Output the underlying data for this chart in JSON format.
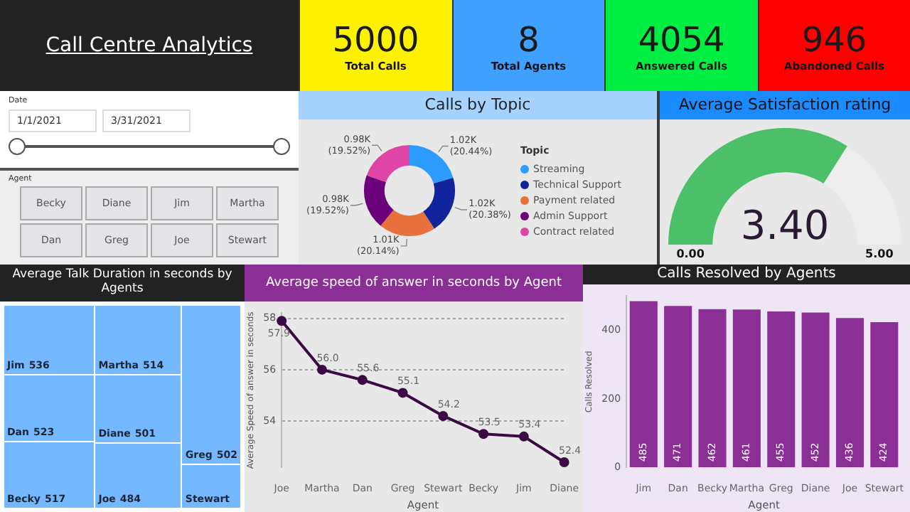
{
  "chart_data": [
    {
      "type": "other",
      "title": "Call Centre Analytics",
      "categories": [
        "Total Calls",
        "Total Agents",
        "Answered Calls",
        "Abandoned Calls"
      ],
      "value_labels": [
        "5000",
        "8",
        "4054",
        "946"
      ],
      "colors": [
        "#fff200",
        "#3fa0ff",
        "#00ee44",
        "#ff0000"
      ]
    },
    {
      "type": "other",
      "annotations": [
        "Date",
        "1/1/2021",
        "3/31/2021",
        "Agent",
        "Becky",
        "Diane",
        "Jim",
        "Martha",
        "Dan",
        "Greg",
        "Joe",
        "Stewart"
      ]
    },
    {
      "type": "donut",
      "title": "Calls by Topic",
      "legend_title": "Topic",
      "legend": "right",
      "categories": [
        "Streaming",
        "Technical Support",
        "Payment related",
        "Admin Support",
        "Contract related"
      ],
      "values": [
        20.44,
        20.38,
        20.14,
        19.52,
        19.52
      ],
      "value_labels": [
        "1.02K (20.44%)",
        "1.02K (20.38%)",
        "1.01K (20.14%)",
        "0.98K (19.52%)",
        "0.98K (19.52%)"
      ],
      "colors": [
        "#2d9cff",
        "#12239e",
        "#e8703a",
        "#6b007b",
        "#e044a7"
      ]
    },
    {
      "type": "donut",
      "title": "Average Satisfaction rating",
      "categories": [
        null,
        null
      ],
      "values": [
        3.4,
        1.6
      ],
      "value_labels": [
        "3.40",
        null
      ],
      "colors": [
        "#4cc068",
        "#eeeeee"
      ],
      "annotations": [
        "0.00",
        "5.00"
      ]
    },
    {
      "type": "other",
      "title": "Average Talk Duration in seconds by Agents",
      "categories": [
        "Jim",
        "Dan",
        "Becky",
        "Martha",
        "Diane",
        "Joe",
        "Greg",
        "Stewart"
      ],
      "values": [
        536,
        523,
        517,
        514,
        501,
        484,
        502,
        null
      ],
      "value_labels": [
        "536",
        "523",
        "517",
        "514",
        "501",
        "484",
        "502",
        null
      ],
      "color": "#74b9ff"
    },
    {
      "type": "line",
      "title": "Average speed of answer in seconds by Agent",
      "xlabel": "Agent",
      "ylabel": "Average Speed of answer in seconds",
      "categories": [
        "Joe",
        "Martha",
        "Dan",
        "Greg",
        "Stewart",
        "Becky",
        "Jim",
        "Diane"
      ],
      "values": [
        57.9,
        56.0,
        55.6,
        55.1,
        54.2,
        53.5,
        53.4,
        52.4
      ],
      "value_labels": [
        "57.9",
        "56.0",
        "55.6",
        "55.1",
        "54.2",
        "53.5",
        "53.4",
        "52.4"
      ],
      "color": "#3b0a45",
      "ylim": [
        52.2,
        58.2
      ],
      "yticks": [
        54,
        56,
        58
      ],
      "grid": "y",
      "marker": "circle",
      "line_style": "solid"
    },
    {
      "type": "bar",
      "title": "Calls Resolved by Agents",
      "xlabel": "Agent",
      "ylabel": "Calls Resolved",
      "categories": [
        "Jim",
        "Dan",
        "Becky",
        "Martha",
        "Greg",
        "Diane",
        "Joe",
        "Stewart"
      ],
      "values": [
        485,
        471,
        462,
        461,
        455,
        452,
        436,
        424
      ],
      "color": "#8b2f97",
      "ylim": [
        0,
        500
      ],
      "yticks": [
        0,
        200,
        400
      ],
      "data_labels": true
    }
  ]
}
